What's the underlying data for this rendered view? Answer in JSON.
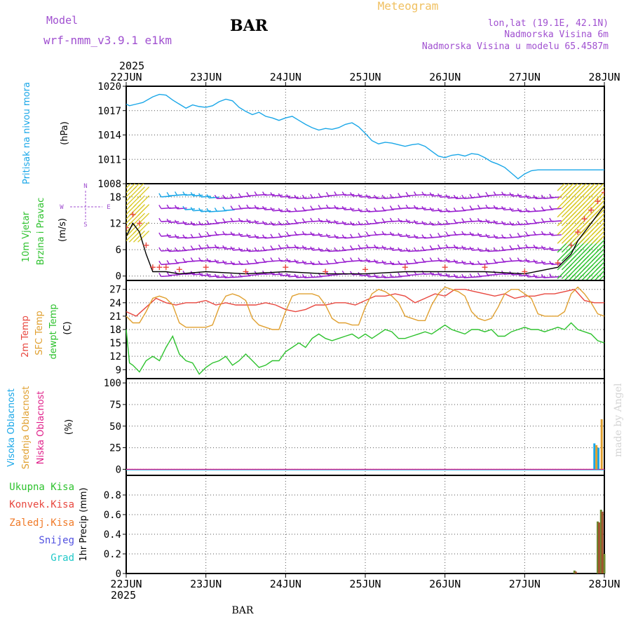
{
  "header": {
    "model_label": "Model",
    "model_name": "wrf-nmm_v3.9.1 e1km",
    "station": "BAR",
    "product": "Meteogram",
    "lonlat": "lon,lat (19.1E, 42.1N)",
    "elevation": "Nadmorska Visina 6m",
    "model_elevation": "Nadmorska Visina u modelu 65.4587m",
    "footer_station": "BAR",
    "watermark": "made by Angel"
  },
  "colors": {
    "pressure": "#1aa7e8",
    "t2m": "#e8473f",
    "sfc": "#e0a030",
    "dewpt": "#2ec22e",
    "high_cloud": "#1aa7e8",
    "mid_cloud": "#e0a030",
    "low_cloud": "#e0208a",
    "total_precip": "#2ec22e",
    "conv_precip": "#e8473f",
    "frz_precip": "#f07a28",
    "snow": "#5050e0",
    "hail": "#20c8c8",
    "model": "#a050d0",
    "title_orange": "#f0c060",
    "wind_purple": "#9a20d0",
    "wind_blue": "#1aa7e8",
    "wind_yellow": "#d8c820",
    "wind_green": "#2ec22e"
  },
  "chart_data": [
    {
      "type": "line",
      "panel": "pressure",
      "ylabel": [
        "Pritisak na nivou mora",
        "(hPa)"
      ],
      "ylim": [
        1008,
        1020
      ],
      "yticks": [
        "1020",
        "1017",
        "1014",
        "1011",
        "1008"
      ],
      "xlim": [
        0,
        144
      ],
      "top_year": "2025",
      "xticks": [
        "22JUN",
        "23JUN",
        "24JUN",
        "25JUN",
        "26JUN",
        "27JUN",
        "28JUN"
      ],
      "series": [
        {
          "key": "pressure",
          "x": [
            0,
            1,
            3,
            5,
            8,
            10,
            12,
            14,
            16,
            18,
            20,
            22,
            24,
            26,
            28,
            30,
            32,
            34,
            36,
            38,
            40,
            42,
            44,
            46,
            48,
            50,
            52,
            54,
            56,
            58,
            60,
            62,
            64,
            66,
            68,
            70,
            72,
            74,
            76,
            78,
            80,
            82,
            84,
            86,
            88,
            90,
            92,
            94,
            96,
            98,
            100,
            102,
            104,
            106,
            108,
            110,
            112,
            114,
            116,
            118,
            120,
            122,
            124,
            126,
            128,
            130,
            132,
            134,
            136,
            137,
            138,
            139,
            140,
            141,
            142,
            143,
            144
          ],
          "values": [
            1017.8,
            1017.6,
            1017.8,
            1018.0,
            1018.7,
            1019.0,
            1018.9,
            1018.3,
            1017.8,
            1017.3,
            1017.7,
            1017.5,
            1017.4,
            1017.6,
            1018.1,
            1018.4,
            1018.2,
            1017.4,
            1016.9,
            1016.5,
            1016.8,
            1016.3,
            1016.1,
            1015.8,
            1016.1,
            1016.3,
            1015.8,
            1015.3,
            1014.9,
            1014.6,
            1014.8,
            1014.7,
            1014.9,
            1015.3,
            1015.5,
            1015.0,
            1014.2,
            1013.3,
            1012.9,
            1013.1,
            1013.0,
            1012.8,
            1012.6,
            1012.8,
            1012.9,
            1012.6,
            1012.0,
            1011.4,
            1011.2,
            1011.5,
            1011.6,
            1011.4,
            1011.7,
            1011.6,
            1011.2,
            1010.7,
            1010.4,
            1010.0,
            1009.3,
            1008.6,
            1009.2,
            1009.6,
            1009.7,
            1009.7,
            1009.7,
            1009.7,
            1009.7,
            1009.7,
            1009.7,
            1009.7,
            1009.7,
            1009.7,
            1009.7,
            1009.7,
            1009.7,
            1009.7,
            1009.7
          ]
        }
      ]
    },
    {
      "type": "scatter",
      "panel": "wind",
      "ylabel": [
        "10m Vjetar",
        "Brzina i Pravac",
        "(m/s)"
      ],
      "compass": {
        "n": "N",
        "s": "S",
        "w": "W",
        "e": "E"
      },
      "ylim": [
        -1,
        21
      ],
      "yticks": [
        "18",
        "12",
        "6",
        "0"
      ],
      "barb_levels_ms": [
        18,
        15,
        12,
        9,
        6,
        3,
        0
      ],
      "barb_colors": [
        "purple",
        "blue",
        "yellow",
        "green"
      ],
      "series": [
        {
          "name": "speed",
          "key": "wind_speed",
          "x": [
            0,
            2,
            4,
            6,
            8,
            10,
            12,
            16,
            24,
            36,
            48,
            60,
            72,
            84,
            96,
            108,
            120,
            130,
            134,
            136,
            138,
            140,
            142,
            144
          ],
          "values": [
            9,
            12,
            10,
            5,
            1,
            1,
            1,
            0.5,
            1,
            0.5,
            1,
            0.5,
            0.5,
            1,
            1,
            1,
            0.5,
            2,
            5,
            8,
            10,
            12,
            14,
            16
          ]
        },
        {
          "name": "gust",
          "key": "wind_gust",
          "x": [
            0,
            2,
            4,
            6,
            8,
            10,
            12,
            16,
            24,
            36,
            48,
            60,
            72,
            84,
            96,
            108,
            120,
            130,
            134,
            136,
            138,
            140,
            142,
            144
          ],
          "values": [
            11,
            14,
            12,
            7,
            2,
            2,
            2,
            1.5,
            2,
            1,
            2,
            1,
            1.5,
            2,
            2,
            2,
            1,
            3,
            7,
            10,
            13,
            15,
            17,
            19
          ]
        }
      ]
    },
    {
      "type": "line",
      "panel": "temperature",
      "ylabel": [
        "2m Temp",
        "SFC Temp",
        "dewpt Temp",
        "(C)"
      ],
      "ylim": [
        7,
        29
      ],
      "yticks": [
        "27",
        "24",
        "21",
        "18",
        "15",
        "12",
        "9"
      ],
      "series": [
        {
          "key": "t2m",
          "x": [
            0,
            3,
            6,
            9,
            12,
            15,
            18,
            21,
            24,
            27,
            30,
            33,
            36,
            39,
            42,
            45,
            48,
            51,
            54,
            57,
            60,
            63,
            66,
            69,
            72,
            75,
            78,
            81,
            84,
            87,
            90,
            93,
            96,
            99,
            102,
            105,
            108,
            111,
            114,
            117,
            120,
            123,
            126,
            129,
            132,
            135,
            138,
            141,
            144
          ],
          "values": [
            22,
            21,
            23,
            25,
            24,
            23.5,
            24,
            24,
            24.5,
            23.5,
            24,
            23.5,
            23.5,
            23.5,
            24,
            23.5,
            22.5,
            22,
            22.5,
            23.5,
            23.5,
            24,
            24,
            23.5,
            24.5,
            25.5,
            25.5,
            26,
            25.5,
            24,
            25,
            26,
            25.5,
            27,
            27,
            26.5,
            26,
            25.5,
            26,
            25,
            25.5,
            25.5,
            26,
            26,
            26.5,
            27,
            24.5,
            24,
            24
          ]
        },
        {
          "key": "sfc",
          "x": [
            0,
            2,
            4,
            6,
            8,
            10,
            12,
            14,
            16,
            18,
            20,
            22,
            24,
            26,
            28,
            30,
            32,
            34,
            36,
            38,
            40,
            42,
            44,
            46,
            48,
            50,
            52,
            54,
            56,
            58,
            60,
            62,
            64,
            66,
            68,
            70,
            72,
            74,
            76,
            78,
            80,
            82,
            84,
            86,
            88,
            90,
            92,
            94,
            96,
            98,
            100,
            102,
            104,
            106,
            108,
            110,
            112,
            114,
            116,
            118,
            120,
            122,
            124,
            126,
            128,
            130,
            132,
            134,
            136,
            138,
            140,
            142,
            144
          ],
          "values": [
            21,
            19.5,
            19.5,
            22,
            25,
            25.5,
            25,
            23.5,
            19.5,
            18.5,
            18.5,
            18.5,
            18.5,
            19,
            23,
            25.5,
            26,
            25.5,
            24.5,
            20.5,
            19,
            18.5,
            18,
            18,
            22,
            25.5,
            26,
            26,
            26,
            25.5,
            23.5,
            20.5,
            19.5,
            19.5,
            19,
            19,
            23,
            26,
            27,
            26.5,
            25.5,
            24,
            21,
            20.5,
            20,
            20,
            23.5,
            26,
            27.5,
            27,
            26.5,
            25.5,
            22,
            20.5,
            20,
            20.5,
            23,
            26,
            27,
            27,
            26,
            25,
            21.5,
            21,
            21,
            21,
            22,
            26,
            27.5,
            26,
            24,
            21.5,
            21
          ]
        },
        {
          "key": "dewpt",
          "x": [
            0,
            1,
            2,
            4,
            6,
            8,
            10,
            12,
            14,
            16,
            18,
            20,
            22,
            24,
            26,
            28,
            30,
            32,
            34,
            36,
            38,
            40,
            42,
            44,
            46,
            48,
            50,
            52,
            54,
            56,
            58,
            60,
            62,
            64,
            66,
            68,
            70,
            72,
            74,
            76,
            78,
            80,
            82,
            84,
            86,
            88,
            90,
            92,
            94,
            96,
            98,
            100,
            102,
            104,
            106,
            108,
            110,
            112,
            114,
            116,
            118,
            120,
            122,
            124,
            126,
            128,
            130,
            132,
            134,
            136,
            138,
            140,
            142,
            144
          ],
          "values": [
            18,
            10.5,
            10,
            8.5,
            11,
            12,
            11,
            14,
            16.5,
            12.5,
            11,
            10.5,
            8,
            9.5,
            10.5,
            11,
            12,
            10,
            11,
            12.5,
            11,
            9.5,
            10,
            11,
            11,
            13,
            14,
            15,
            14,
            16,
            17,
            16,
            15.5,
            16,
            16.5,
            17,
            16,
            17,
            16,
            17,
            18,
            17.5,
            16,
            16,
            16.5,
            17,
            17.5,
            17,
            18,
            19,
            18,
            17.5,
            17,
            18,
            18,
            17.5,
            18,
            16.5,
            16.5,
            17.5,
            18,
            18.5,
            18,
            18,
            17.5,
            18,
            18.5,
            18,
            19.5,
            18,
            17.5,
            17,
            15.5,
            15
          ]
        }
      ]
    },
    {
      "type": "bar",
      "panel": "cloud",
      "ylabel": [
        "Visoka Oblacnost",
        "Srednja Oblacnost",
        "Niska Oblacnost",
        "(%)"
      ],
      "ylim": [
        -7,
        105
      ],
      "yticks": [
        "100",
        "75",
        "50",
        "25",
        "0"
      ],
      "series": [
        {
          "key": "high_cloud",
          "x": [
            141,
            142.2
          ],
          "values": [
            30,
            25
          ]
        },
        {
          "key": "mid_cloud",
          "x": [
            141.6,
            143.2
          ],
          "values": [
            28,
            58
          ]
        },
        {
          "key": "low_cloud",
          "x": [
            140.5
          ],
          "values": [
            0
          ]
        }
      ]
    },
    {
      "type": "bar",
      "panel": "precip",
      "ylabel": [
        "1hr Precip (mm)"
      ],
      "legend": [
        "Ukupna Kisa",
        "Konvek.Kisa",
        "Zaledj.Kisa",
        "Snijeg",
        "Grad"
      ],
      "ylim": [
        0,
        1.0
      ],
      "yticks": [
        "0.8",
        "0.6",
        "0.4",
        "0.2",
        "0"
      ],
      "bottom_year": "2025",
      "series": [
        {
          "key": "total_precip",
          "x": [
            135,
            142,
            143,
            144
          ],
          "values": [
            0.03,
            0.53,
            0.65,
            0.2
          ]
        },
        {
          "key": "conv_precip",
          "x": [
            135.4,
            142.4,
            143.4
          ],
          "values": [
            0.02,
            0.52,
            0.63
          ]
        }
      ]
    }
  ]
}
